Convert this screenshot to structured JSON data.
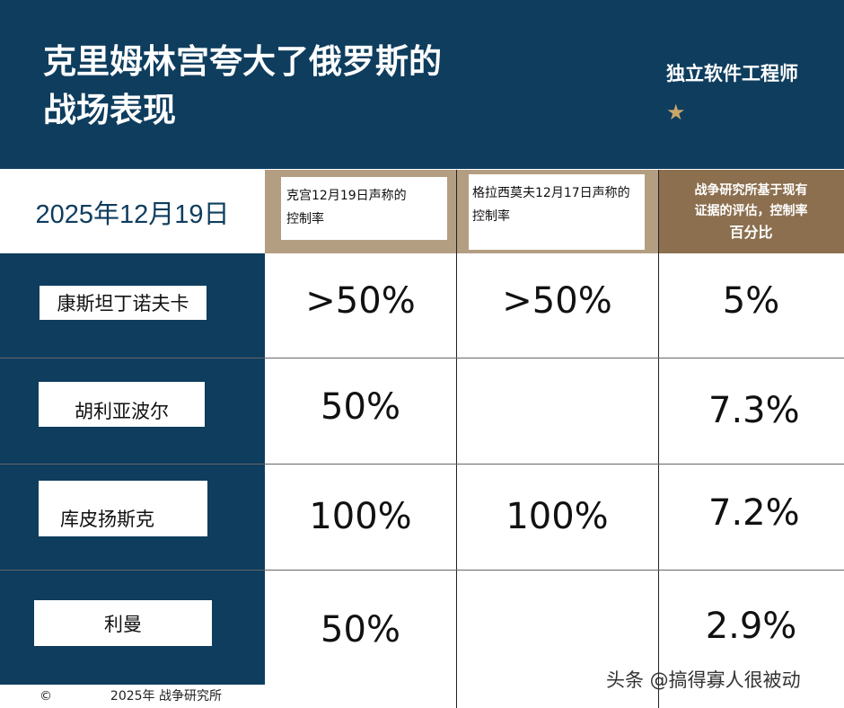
{
  "header": {
    "title_line1": "克里姆林宫夸大了俄罗斯的",
    "title_line2": "战场表现",
    "brand": "独立软件工程师",
    "star_icon": "★",
    "background_color": "#0e3d5e"
  },
  "table": {
    "date": "2025年12月19日",
    "columns": [
      {
        "line1": "克宫12月19日声称的",
        "line2": "控制率"
      },
      {
        "line1": "格拉西莫夫12月17日声称的",
        "line2": "控制率"
      },
      {
        "line1": "战争研究所基于现有",
        "line2": "证据的评估，控制率",
        "line3": "百分比"
      }
    ],
    "rows": [
      {
        "name": "康斯坦丁诺夫卡",
        "kremlin": ">50%",
        "gerasimov": ">50%",
        "isw": "5%"
      },
      {
        "name": "胡利亚波尔",
        "kremlin": "50%",
        "gerasimov": "",
        "isw": "7.3%"
      },
      {
        "name": "库皮扬斯克",
        "kremlin": "100%",
        "gerasimov": "100%",
        "isw": "7.2%"
      },
      {
        "name": "利曼",
        "kremlin": "50%",
        "gerasimov": "",
        "isw": "2.9%"
      }
    ]
  },
  "footer": {
    "copyright_symbol": "©",
    "text": "2025年 战争研究所"
  },
  "watermark": "头条 @搞得寡人很被动"
}
